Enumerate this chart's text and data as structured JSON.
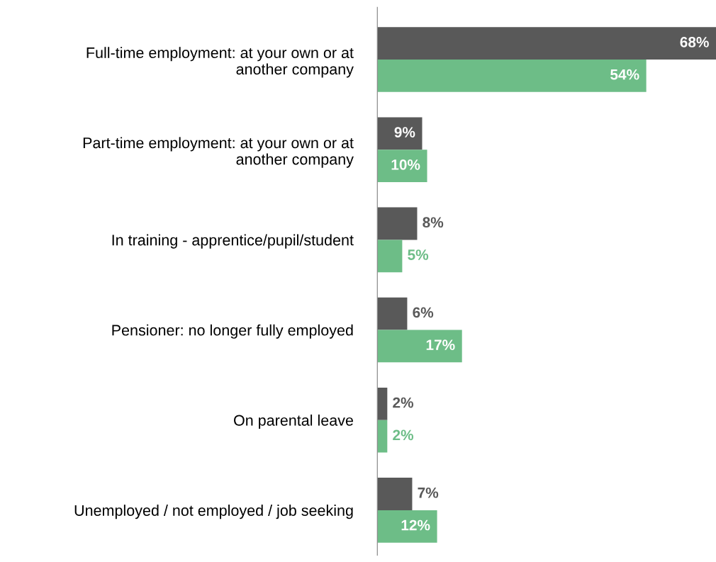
{
  "chart_data": {
    "type": "bar",
    "orientation": "horizontal",
    "grid": false,
    "legend": false,
    "categories": [
      "Full-time employment: at your own or at\nanother company",
      "Part-time employment: at your own or at\nanother company",
      "In training - apprentice/pupil/student",
      "Pensioner: no longer fully employed",
      "On parental leave",
      "Unemployed / not employed / job seeking"
    ],
    "series": [
      {
        "color": "#595959",
        "values": [
          68,
          9,
          8,
          6,
          2,
          7
        ],
        "value_labels": [
          "68%",
          "9%",
          "8%",
          "6%",
          "2%",
          "7%"
        ]
      },
      {
        "color": "#6dbd87",
        "values": [
          54,
          10,
          5,
          17,
          2,
          12
        ],
        "value_labels": [
          "54%",
          "10%",
          "5%",
          "17%",
          "2%",
          "12%"
        ]
      }
    ]
  }
}
